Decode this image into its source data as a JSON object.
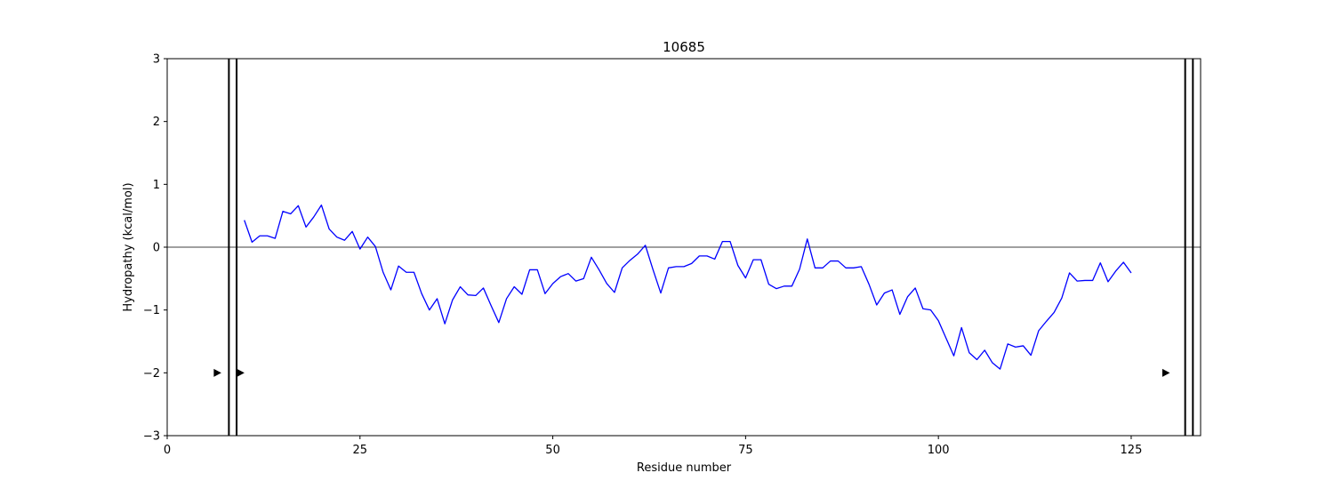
{
  "chart_data": {
    "type": "line",
    "title": "10685",
    "xlabel": "Residue number",
    "ylabel": "Hydropathy (kcal/mol)",
    "xlim": [
      0,
      134
    ],
    "ylim": [
      -3,
      3
    ],
    "xticks": [
      0,
      25,
      50,
      75,
      100,
      125
    ],
    "yticks": [
      -3,
      -2,
      -1,
      0,
      1,
      2,
      3
    ],
    "ytick_labels": [
      "−3",
      "−2",
      "−1",
      "0",
      "1",
      "2",
      "3"
    ],
    "grid": false,
    "zero_line": 0,
    "line_color": "#0000ff",
    "series": [
      {
        "x_start": 10,
        "values": [
          0.43,
          0.08,
          0.18,
          0.18,
          0.14,
          0.57,
          0.53,
          0.66,
          0.32,
          0.48,
          0.67,
          0.29,
          0.16,
          0.11,
          0.25,
          -0.03,
          0.16,
          0.01,
          -0.4,
          -0.68,
          -0.3,
          -0.4,
          -0.4,
          -0.74,
          -1.0,
          -0.82,
          -1.22,
          -0.84,
          -0.63,
          -0.76,
          -0.77,
          -0.65,
          -0.93,
          -1.2,
          -0.82,
          -0.63,
          -0.75,
          -0.36,
          -0.36,
          -0.74,
          -0.58,
          -0.47,
          -0.42,
          -0.54,
          -0.5,
          -0.16,
          -0.36,
          -0.58,
          -0.72,
          -0.33,
          -0.21,
          -0.11,
          0.03,
          -0.36,
          -0.73,
          -0.33,
          -0.31,
          -0.31,
          -0.26,
          -0.14,
          -0.14,
          -0.19,
          0.09,
          0.09,
          -0.29,
          -0.49,
          -0.2,
          -0.2,
          -0.59,
          -0.66,
          -0.62,
          -0.62,
          -0.35,
          0.13,
          -0.33,
          -0.33,
          -0.22,
          -0.22,
          -0.33,
          -0.33,
          -0.31,
          -0.59,
          -0.92,
          -0.73,
          -0.68,
          -1.07,
          -0.79,
          -0.65,
          -0.98,
          -1.0,
          -1.17,
          -1.45,
          -1.73,
          -1.28,
          -1.68,
          -1.79,
          -1.64,
          -1.84,
          -1.94,
          -1.54,
          -1.59,
          -1.57,
          -1.72,
          -1.33,
          -1.18,
          -1.04,
          -0.81,
          -0.41,
          -0.54,
          -0.53,
          -0.53,
          -0.25,
          -0.55,
          -0.38,
          -0.24,
          -0.41
        ]
      }
    ],
    "vertical_lines_x": [
      8,
      9,
      132,
      133
    ],
    "markers": [
      {
        "x": 6.5,
        "y": -2
      },
      {
        "x": 9.5,
        "y": -2
      },
      {
        "x": 129.5,
        "y": -2
      }
    ]
  }
}
